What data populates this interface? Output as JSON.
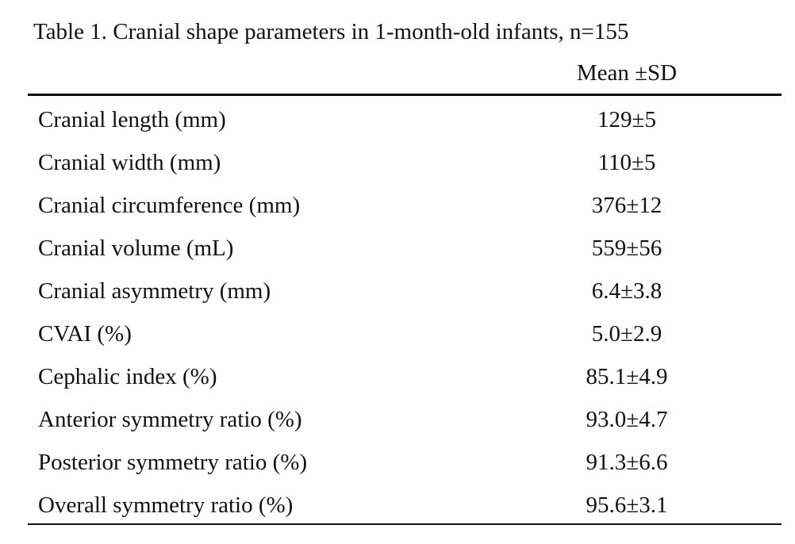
{
  "table": {
    "caption": "Table 1. Cranial shape parameters in 1-month-old infants, n=155",
    "column_header": "Mean ±SD",
    "rows": [
      {
        "label": "Cranial length (mm)",
        "value": "129±5"
      },
      {
        "label": "Cranial width (mm)",
        "value": "110±5"
      },
      {
        "label": "Cranial circumference (mm)",
        "value": "376±12"
      },
      {
        "label": "Cranial volume (mL)",
        "value": "559±56"
      },
      {
        "label": "Cranial asymmetry (mm)",
        "value": "6.4±3.8"
      },
      {
        "label": "CVAI (%)",
        "value": "5.0±2.9"
      },
      {
        "label": "Cephalic index (%)",
        "value": "85.1±4.9"
      },
      {
        "label": "Anterior symmetry ratio (%)",
        "value": "93.0±4.7"
      },
      {
        "label": "Posterior symmetry ratio (%)",
        "value": "91.3±6.6"
      },
      {
        "label": "Overall symmetry ratio (%)",
        "value": "95.6±3.1"
      }
    ]
  }
}
